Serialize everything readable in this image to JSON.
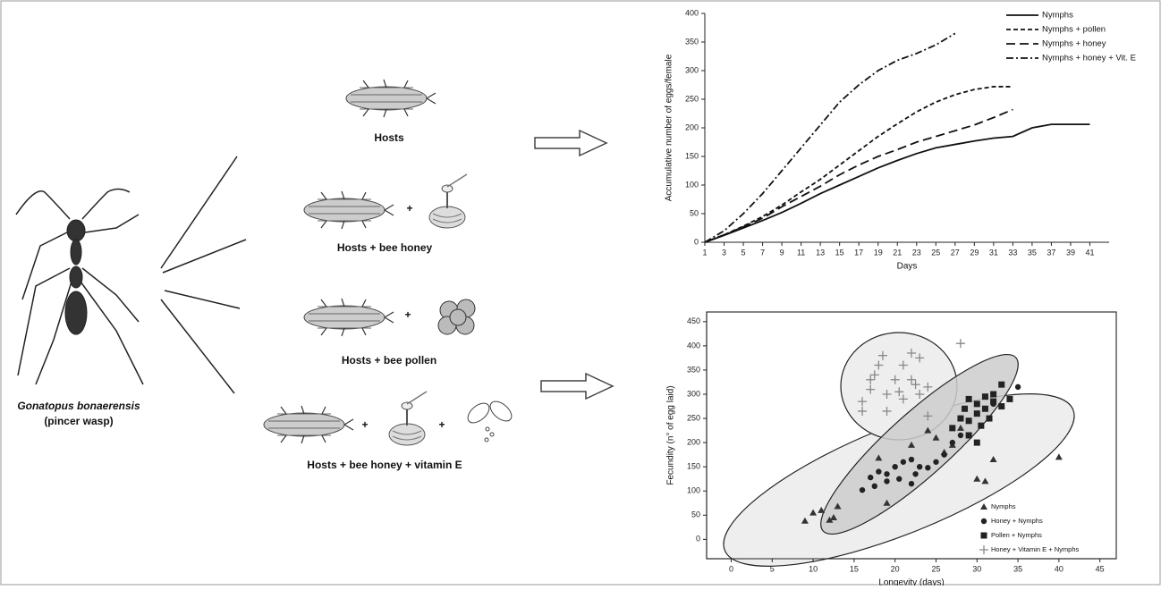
{
  "labels": {
    "species": "Gonatopus bonaerensis",
    "common_name": "(pincer wasp)",
    "plus": "+",
    "treatment_1": "Hosts",
    "treatment_2": "Hosts + bee honey",
    "treatment_3": "Hosts + bee pollen",
    "treatment_4": "Hosts + bee honey + vitamin E"
  },
  "chart_data": [
    {
      "type": "line",
      "xlabel": "Days",
      "ylabel": "Accumulative number of eggs/female",
      "x": [
        1,
        3,
        5,
        7,
        9,
        11,
        13,
        15,
        17,
        19,
        21,
        23,
        25,
        27,
        29,
        31,
        33,
        35,
        37,
        39,
        41
      ],
      "xlim": [
        1,
        43
      ],
      "ylim": [
        0,
        400
      ],
      "xticks": [
        1,
        3,
        5,
        7,
        9,
        11,
        13,
        15,
        17,
        19,
        21,
        23,
        25,
        27,
        29,
        31,
        33,
        35,
        37,
        39,
        41
      ],
      "yticks": [
        0,
        50,
        100,
        150,
        200,
        250,
        300,
        350,
        400
      ],
      "legend": "upper-right",
      "series": [
        {
          "name": "Nymphs",
          "color": "#111111",
          "style": "solid",
          "values": [
            0,
            12,
            25,
            38,
            52,
            68,
            85,
            100,
            115,
            130,
            143,
            155,
            165,
            171,
            177,
            182,
            185,
            200,
            206,
            206,
            206
          ]
        },
        {
          "name": "Nymphs + pollen",
          "color": "#111111",
          "style": "short-dash",
          "values": [
            0,
            13,
            28,
            45,
            65,
            88,
            110,
            135,
            160,
            185,
            207,
            228,
            245,
            258,
            267,
            272,
            272,
            null,
            null,
            null,
            null
          ]
        },
        {
          "name": "Nymphs + honey",
          "color": "#111111",
          "style": "long-dash",
          "values": [
            0,
            13,
            27,
            42,
            62,
            80,
            98,
            118,
            135,
            150,
            162,
            175,
            185,
            195,
            205,
            218,
            232,
            null,
            null,
            null,
            null
          ]
        },
        {
          "name": "Nymphs + honey + Vit. E",
          "color": "#111111",
          "style": "dash-dot",
          "values": [
            0,
            20,
            50,
            85,
            125,
            165,
            205,
            245,
            275,
            300,
            318,
            330,
            345,
            365,
            null,
            null,
            null,
            null,
            null,
            null,
            null
          ]
        }
      ]
    },
    {
      "type": "scatter",
      "xlabel": "Longevity (days)",
      "ylabel": "Fecundity (n° of egg laid)",
      "xlim": [
        -3,
        47
      ],
      "ylim": [
        -40,
        470
      ],
      "xticks": [
        0,
        5,
        10,
        15,
        20,
        25,
        30,
        35,
        40,
        45
      ],
      "yticks": [
        0,
        50,
        100,
        150,
        200,
        250,
        300,
        350,
        400,
        450
      ],
      "legend": "lower-right",
      "series": [
        {
          "name": "Nymphs",
          "color": "#333333",
          "marker": "triangle",
          "x": [
            9,
            10,
            11,
            12,
            12.5,
            13,
            18,
            19,
            22,
            24,
            26,
            27,
            30,
            31,
            32,
            40,
            28,
            25
          ],
          "values": [
            38,
            55,
            60,
            40,
            45,
            68,
            168,
            75,
            195,
            225,
            180,
            195,
            125,
            120,
            165,
            170,
            230,
            210
          ]
        },
        {
          "name": "Honey + Nymphs",
          "color": "#222222",
          "marker": "circle",
          "x": [
            16,
            17,
            17.5,
            18,
            19,
            20,
            20.5,
            21,
            22,
            22.5,
            23,
            24,
            25,
            26,
            27,
            28,
            35,
            32,
            19,
            22
          ],
          "values": [
            102,
            128,
            110,
            140,
            135,
            150,
            125,
            160,
            165,
            135,
            150,
            148,
            160,
            175,
            200,
            215,
            315,
            280,
            120,
            115
          ]
        },
        {
          "name": "Pollen + Nymphs",
          "color": "#222222",
          "marker": "square",
          "x": [
            27,
            28,
            28.5,
            29,
            29,
            30,
            30,
            30.5,
            31,
            31,
            31.5,
            32,
            32,
            33,
            33,
            34,
            29,
            30
          ],
          "values": [
            230,
            250,
            270,
            290,
            245,
            280,
            260,
            235,
            295,
            270,
            250,
            300,
            285,
            320,
            275,
            290,
            215,
            200
          ]
        },
        {
          "name": "Honey + Vitamin E + Nymphs",
          "color": "#888888",
          "marker": "plus",
          "x": [
            16,
            16,
            17,
            17,
            17.5,
            18,
            18.5,
            19,
            19,
            20,
            20.5,
            21,
            21,
            22,
            22,
            22.5,
            23,
            23,
            24,
            24,
            28
          ],
          "values": [
            265,
            285,
            310,
            330,
            340,
            360,
            380,
            300,
            265,
            330,
            305,
            290,
            360,
            385,
            330,
            320,
            375,
            300,
            315,
            255,
            405
          ]
        }
      ]
    }
  ]
}
